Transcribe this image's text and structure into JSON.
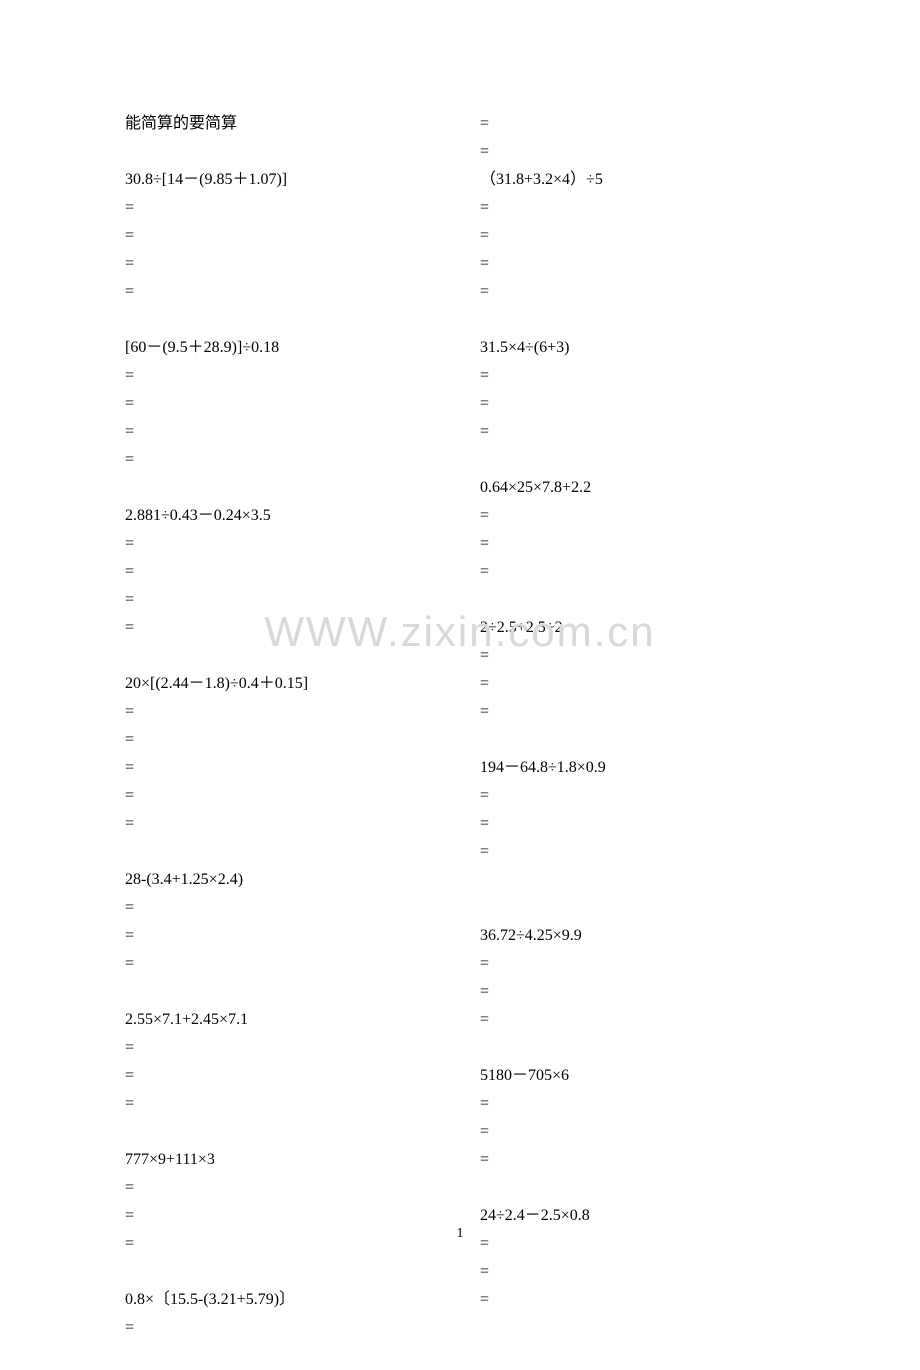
{
  "title": "能简算的要简算",
  "watermark": "WWW.zixin.com.cn",
  "pageNumber": "1",
  "leftColumn": {
    "problems": [
      {
        "expr": "30.8÷[14－(9.85＋1.07)]",
        "equalsCount": 4,
        "extraLines": 0
      },
      {
        "expr": "[60－(9.5＋28.9)]÷0.18",
        "equalsCount": 4,
        "extraLines": 0
      },
      {
        "expr": "2.881÷0.43－0.24×3.5",
        "equalsCount": 4,
        "extraLines": 0
      },
      {
        "expr": "20×[(2.44－1.8)÷0.4＋0.15]",
        "equalsCount": 5,
        "extraLines": 0
      },
      {
        "expr": "28-(3.4+1.25×2.4)",
        "equalsCount": 3,
        "extraLines": 0
      },
      {
        "expr": "2.55×7.1+2.45×7.1",
        "equalsCount": 3,
        "extraLines": 0
      },
      {
        "expr": "777×9+111×3",
        "equalsCount": 3,
        "extraLines": 0
      },
      {
        "expr": "0.8×〔15.5-(3.21+5.79)〕",
        "equalsCount": 1,
        "extraLines": 0
      }
    ]
  },
  "rightColumn": {
    "leadingEquals": 2,
    "problems": [
      {
        "expr": "（31.8+3.2×4）÷5",
        "equalsCount": 4,
        "extraLines": 0
      },
      {
        "expr": "31.5×4÷(6+3)",
        "equalsCount": 3,
        "extraLines": 0
      },
      {
        "expr": "0.64×25×7.8+2.2",
        "equalsCount": 3,
        "extraLines": 0
      },
      {
        "expr": "2÷2.5+2.5÷2",
        "equalsCount": 3,
        "extraLines": 0
      },
      {
        "expr": "194－64.8÷1.8×0.9",
        "equalsCount": 3,
        "extraLines": 1
      },
      {
        "expr": "36.72÷4.25×9.9",
        "equalsCount": 3,
        "extraLines": 0
      },
      {
        "expr": "5180－705×6",
        "equalsCount": 3,
        "extraLines": 0
      },
      {
        "expr": "24÷2.4－2.5×0.8",
        "equalsCount": 3,
        "extraLines": 0
      }
    ]
  },
  "styling": {
    "pageWidth": 920,
    "pageHeight": 1302,
    "backgroundColor": "#ffffff",
    "textColor": "#000000",
    "watermarkColor": "#d8d8d8",
    "fontSize": 16,
    "lineHeight": 28,
    "watermarkFontSize": 42
  }
}
